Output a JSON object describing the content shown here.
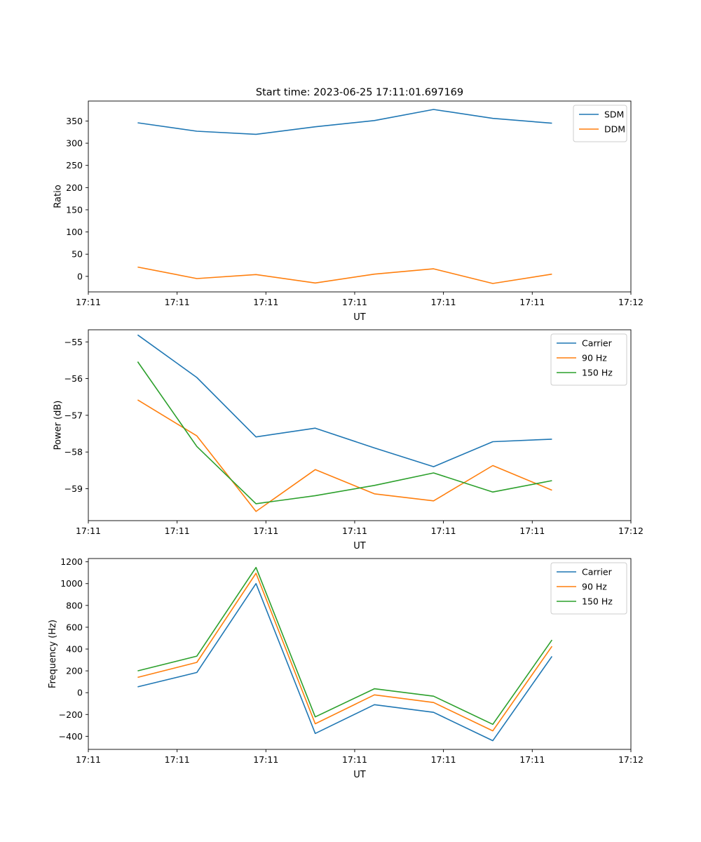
{
  "figure": {
    "title": "Start time: 2023-06-25 17:11:01.697169"
  },
  "chart_data": [
    {
      "type": "line",
      "xlabel": "UT",
      "ylabel": "Ratio",
      "x": [
        0.6,
        1.2,
        1.8,
        2.4,
        3.0,
        3.6,
        4.2,
        4.8
      ],
      "xlim": [
        0.1,
        5.6
      ],
      "x_ticks": [
        0.1,
        1.0,
        1.9,
        2.8,
        3.7,
        4.6,
        5.6
      ],
      "x_tick_labels": [
        "17:11",
        "17:11",
        "17:11",
        "17:11",
        "17:11",
        "17:11",
        "17:12"
      ],
      "ylim": [
        -35,
        395
      ],
      "y_ticks": [
        0,
        50,
        100,
        150,
        200,
        250,
        300,
        350
      ],
      "y_tick_labels": [
        "0",
        "50",
        "100",
        "150",
        "200",
        "250",
        "300",
        "350"
      ],
      "legend_position": "top-right",
      "series": [
        {
          "name": "SDM",
          "color": "#1f77b4",
          "values": [
            346,
            327,
            320,
            337,
            351,
            376,
            356,
            345
          ]
        },
        {
          "name": "DDM",
          "color": "#ff7f0e",
          "values": [
            21,
            -5,
            4,
            -15,
            5,
            17,
            -16,
            5
          ]
        }
      ]
    },
    {
      "type": "line",
      "xlabel": "UT",
      "ylabel": "Power (dB)",
      "x": [
        0.6,
        1.2,
        1.8,
        2.4,
        3.0,
        3.6,
        4.2,
        4.8
      ],
      "xlim": [
        0.1,
        5.6
      ],
      "x_ticks": [
        0.1,
        1.0,
        1.9,
        2.8,
        3.7,
        4.6,
        5.6
      ],
      "x_tick_labels": [
        "17:11",
        "17:11",
        "17:11",
        "17:11",
        "17:11",
        "17:11",
        "17:12"
      ],
      "ylim": [
        -59.87,
        -54.67
      ],
      "y_ticks": [
        -55,
        -56,
        -57,
        -58,
        -59
      ],
      "y_tick_labels": [
        "−55",
        "−56",
        "−57",
        "−58",
        "−59"
      ],
      "legend_position": "top-right",
      "series": [
        {
          "name": "Carrier",
          "color": "#1f77b4",
          "values": [
            -54.81,
            -55.97,
            -57.59,
            -57.35,
            -57.89,
            -58.4,
            -57.72,
            -57.65
          ]
        },
        {
          "name": "90 Hz",
          "color": "#ff7f0e",
          "values": [
            -56.58,
            -57.56,
            -59.62,
            -58.48,
            -59.14,
            -59.33,
            -58.37,
            -59.04
          ]
        },
        {
          "name": "150 Hz",
          "color": "#2ca02c",
          "values": [
            -55.54,
            -57.85,
            -59.41,
            -59.19,
            -58.91,
            -58.57,
            -59.09,
            -58.78
          ]
        }
      ]
    },
    {
      "type": "line",
      "xlabel": "UT",
      "ylabel": "Frequency (Hz)",
      "x": [
        0.6,
        1.2,
        1.8,
        2.4,
        3.0,
        3.6,
        4.2,
        4.8
      ],
      "xlim": [
        0.1,
        5.6
      ],
      "x_ticks": [
        0.1,
        1.0,
        1.9,
        2.8,
        3.7,
        4.6,
        5.6
      ],
      "x_tick_labels": [
        "17:11",
        "17:11",
        "17:11",
        "17:11",
        "17:11",
        "17:11",
        "17:12"
      ],
      "ylim": [
        -520,
        1230
      ],
      "y_ticks": [
        1200,
        1000,
        800,
        600,
        400,
        200,
        0,
        -200,
        -400
      ],
      "y_tick_labels": [
        "1200",
        "1000",
        "800",
        "600",
        "400",
        "200",
        "0",
        "−200",
        "−400"
      ],
      "legend_position": "top-right",
      "series": [
        {
          "name": "Carrier",
          "color": "#1f77b4",
          "values": [
            53,
            185,
            1000,
            -374,
            -110,
            -180,
            -440,
            333
          ]
        },
        {
          "name": "90 Hz",
          "color": "#ff7f0e",
          "values": [
            140,
            278,
            1095,
            -285,
            -20,
            -90,
            -350,
            425
          ]
        },
        {
          "name": "150 Hz",
          "color": "#2ca02c",
          "values": [
            200,
            335,
            1148,
            -222,
            36,
            -32,
            -290,
            483
          ]
        }
      ]
    }
  ]
}
